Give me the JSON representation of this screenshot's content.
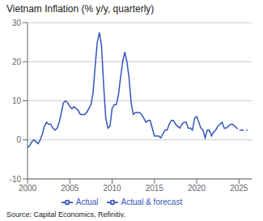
{
  "chart_data": {
    "type": "line",
    "title": "Vietnam Inflation (% y/y, quarterly)",
    "annotations": [
      "Source: Capital Economics, Refinitiv."
    ],
    "xlim": [
      2000,
      2026.5
    ],
    "xticks": [
      2000,
      2005,
      2010,
      2015,
      2020,
      2025
    ],
    "ylim": [
      -10,
      30
    ],
    "yticks": [
      -10,
      0,
      10,
      20,
      30
    ],
    "grid": true,
    "x": [
      2000,
      2000.25,
      2000.5,
      2000.75,
      2001,
      2001.25,
      2001.5,
      2001.75,
      2002,
      2002.25,
      2002.5,
      2002.75,
      2003,
      2003.25,
      2003.5,
      2003.75,
      2004,
      2004.25,
      2004.5,
      2004.75,
      2005,
      2005.25,
      2005.5,
      2005.75,
      2006,
      2006.25,
      2006.5,
      2006.75,
      2007,
      2007.25,
      2007.5,
      2007.75,
      2008,
      2008.25,
      2008.5,
      2008.75,
      2009,
      2009.25,
      2009.5,
      2009.75,
      2010,
      2010.25,
      2010.5,
      2010.75,
      2011,
      2011.25,
      2011.5,
      2011.75,
      2012,
      2012.25,
      2012.5,
      2012.75,
      2013,
      2013.25,
      2013.5,
      2013.75,
      2014,
      2014.25,
      2014.5,
      2014.75,
      2015,
      2015.25,
      2015.5,
      2015.75,
      2016,
      2016.25,
      2016.5,
      2016.75,
      2017,
      2017.25,
      2017.5,
      2017.75,
      2018,
      2018.25,
      2018.5,
      2018.75,
      2019,
      2019.25,
      2019.5,
      2019.75,
      2020,
      2020.25,
      2020.5,
      2020.75,
      2021,
      2021.25,
      2021.5,
      2021.75,
      2022,
      2022.25,
      2022.5,
      2022.75,
      2023,
      2023.25,
      2023.5,
      2023.75,
      2024,
      2024.25,
      2024.5,
      2024.75,
      2025,
      2025.25,
      2025.5,
      2025.75,
      2026
    ],
    "series": [
      {
        "name": "Actual",
        "color": "#3355bb",
        "line_style": "solid",
        "values": [
          -2.0,
          -1.5,
          -0.5,
          0.0,
          -0.5,
          -1.0,
          0.0,
          1.5,
          3.5,
          4.5,
          4.0,
          4.0,
          3.0,
          2.5,
          3.0,
          4.5,
          7.0,
          9.5,
          10.0,
          9.5,
          8.5,
          8.0,
          8.5,
          8.0,
          7.5,
          6.5,
          6.5,
          6.5,
          7.0,
          8.0,
          9.0,
          12.0,
          19.0,
          25.0,
          27.5,
          24.0,
          14.0,
          5.5,
          3.0,
          3.5,
          8.0,
          9.0,
          9.0,
          11.5,
          16.0,
          20.0,
          22.5,
          20.0,
          16.0,
          9.5,
          6.5,
          7.0,
          7.0,
          7.0,
          6.5,
          5.5,
          4.5,
          5.0,
          5.0,
          3.0,
          1.0,
          1.0,
          1.0,
          0.5,
          1.5,
          2.5,
          2.5,
          4.0,
          5.0,
          5.0,
          4.0,
          3.5,
          3.0,
          4.0,
          4.5,
          4.5,
          3.0,
          3.0,
          2.5,
          5.5,
          6.0,
          4.5,
          3.0,
          2.5,
          0.5,
          2.5,
          2.5,
          1.0,
          2.0,
          2.5,
          3.5,
          4.0,
          4.5,
          3.0,
          3.0,
          3.5,
          4.0,
          4.0,
          3.5,
          null,
          null,
          null,
          null,
          null,
          null
        ]
      },
      {
        "name": "Actual & forecast",
        "color": "#3355bb",
        "line_style": "dashed",
        "values": [
          null,
          null,
          null,
          null,
          null,
          null,
          null,
          null,
          null,
          null,
          null,
          null,
          null,
          null,
          null,
          null,
          null,
          null,
          null,
          null,
          null,
          null,
          null,
          null,
          null,
          null,
          null,
          null,
          null,
          null,
          null,
          null,
          null,
          null,
          null,
          null,
          null,
          null,
          null,
          null,
          null,
          null,
          null,
          null,
          null,
          null,
          null,
          null,
          null,
          null,
          null,
          null,
          null,
          null,
          null,
          null,
          null,
          null,
          null,
          null,
          null,
          null,
          null,
          null,
          null,
          null,
          null,
          null,
          null,
          null,
          null,
          null,
          null,
          null,
          null,
          null,
          null,
          null,
          null,
          null,
          null,
          null,
          null,
          null,
          null,
          null,
          null,
          null,
          null,
          null,
          null,
          null,
          null,
          null,
          null,
          null,
          null,
          null,
          3.5,
          3.0,
          2.5,
          2.5,
          2.5,
          2.5,
          2.5
        ]
      }
    ]
  }
}
